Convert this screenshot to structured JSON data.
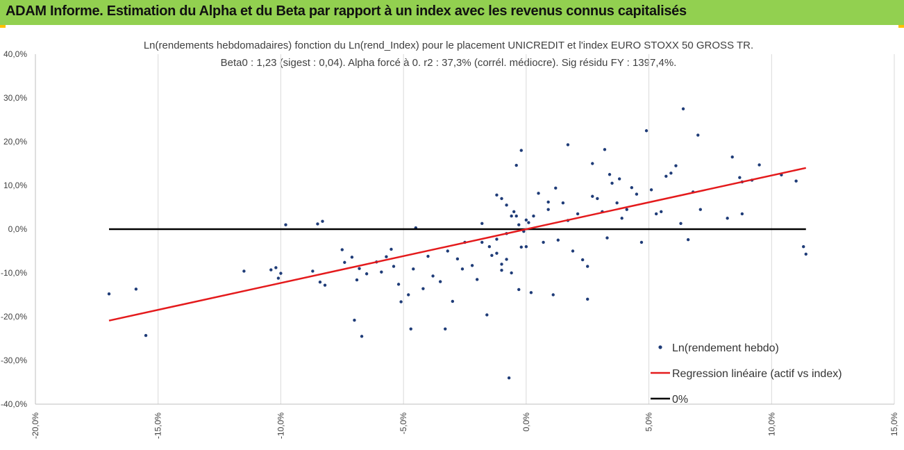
{
  "header": {
    "title": "ADAM Informe. Estimation du Alpha et du Beta par rapport à un index avec les revenus connus capitalisés"
  },
  "colors": {
    "banner": "#92d050",
    "accent": "#ffc000",
    "scatter": "#1f3c78",
    "regression": "#e41a1c",
    "zero_line": "#000000"
  },
  "chart_data": {
    "type": "scatter",
    "title": "Ln(rendements hebdomadaires) fonction du Ln(rend_Index) pour le placement UNICREDIT et l'index EURO STOXX 50 GROSS TR.",
    "subtitle": "Beta0 : 1,23  (sigest : 0,04).  Alpha forcé à 0. r2 : 37,3% (corrél. médiocre). Sig résidu FY : 1397,4%.",
    "xlim": [
      -0.2,
      0.15
    ],
    "ylim": [
      -0.4,
      0.4
    ],
    "x_ticks": [
      -0.2,
      -0.15,
      -0.1,
      -0.05,
      0.0,
      0.05,
      0.1,
      0.15
    ],
    "y_ticks": [
      -0.4,
      -0.3,
      -0.2,
      -0.1,
      0.0,
      0.1,
      0.2,
      0.3,
      0.4
    ],
    "x_tick_labels": [
      "-20,0%",
      "-15,0%",
      "-10,0%",
      "-5,0%",
      "0,0%",
      "5,0%",
      "10,0%",
      "15,0%"
    ],
    "y_tick_labels": [
      "-40,0%",
      "-30,0%",
      "-20,0%",
      "-10,0%",
      "0,0%",
      "10,0%",
      "20,0%",
      "30,0%",
      "40,0%"
    ],
    "grid": "vertical",
    "legend_position": "bottom-right",
    "series": [
      {
        "name": "Ln(rendement hebdo)",
        "type": "scatter",
        "points": [
          [
            -0.17,
            -0.148
          ],
          [
            -0.159,
            -0.137
          ],
          [
            -0.155,
            -0.243
          ],
          [
            -0.115,
            -0.096
          ],
          [
            -0.104,
            -0.093
          ],
          [
            -0.102,
            -0.088
          ],
          [
            -0.101,
            -0.112
          ],
          [
            -0.1,
            -0.101
          ],
          [
            -0.098,
            0.01
          ],
          [
            -0.087,
            -0.096
          ],
          [
            -0.085,
            0.012
          ],
          [
            -0.084,
            -0.121
          ],
          [
            -0.083,
            0.018
          ],
          [
            -0.082,
            -0.128
          ],
          [
            -0.075,
            -0.047
          ],
          [
            -0.074,
            -0.076
          ],
          [
            -0.071,
            -0.064
          ],
          [
            -0.07,
            -0.208
          ],
          [
            -0.069,
            -0.116
          ],
          [
            -0.068,
            -0.09
          ],
          [
            -0.067,
            -0.245
          ],
          [
            -0.065,
            -0.102
          ],
          [
            -0.061,
            -0.075
          ],
          [
            -0.059,
            -0.098
          ],
          [
            -0.057,
            -0.063
          ],
          [
            -0.055,
            -0.046
          ],
          [
            -0.054,
            -0.085
          ],
          [
            -0.052,
            -0.126
          ],
          [
            -0.051,
            -0.166
          ],
          [
            -0.048,
            -0.15
          ],
          [
            -0.047,
            -0.228
          ],
          [
            -0.046,
            -0.091
          ],
          [
            -0.045,
            0.003
          ],
          [
            -0.042,
            -0.136
          ],
          [
            -0.04,
            -0.062
          ],
          [
            -0.038,
            -0.107
          ],
          [
            -0.035,
            -0.12
          ],
          [
            -0.033,
            -0.228
          ],
          [
            -0.032,
            -0.05
          ],
          [
            -0.03,
            -0.165
          ],
          [
            -0.028,
            -0.068
          ],
          [
            -0.026,
            -0.091
          ],
          [
            -0.025,
            -0.03
          ],
          [
            -0.022,
            -0.083
          ],
          [
            -0.02,
            -0.115
          ],
          [
            -0.018,
            0.013
          ],
          [
            -0.016,
            -0.196
          ],
          [
            -0.014,
            -0.06
          ],
          [
            -0.012,
            -0.023
          ],
          [
            -0.01,
            -0.094
          ],
          [
            -0.008,
            -0.069
          ],
          [
            -0.006,
            0.03
          ],
          [
            -0.004,
            0.03
          ],
          [
            -0.002,
            -0.041
          ],
          [
            0.0,
            0.021
          ],
          [
            -0.018,
            -0.03
          ],
          [
            -0.015,
            -0.04
          ],
          [
            -0.012,
            -0.055
          ],
          [
            -0.01,
            -0.08
          ],
          [
            -0.008,
            -0.01
          ],
          [
            -0.006,
            -0.1
          ],
          [
            -0.004,
            0.146
          ],
          [
            -0.002,
            0.18
          ],
          [
            0.0,
            -0.04
          ],
          [
            -0.012,
            0.078
          ],
          [
            -0.01,
            0.07
          ],
          [
            -0.008,
            0.055
          ],
          [
            -0.005,
            0.04
          ],
          [
            -0.003,
            0.01
          ],
          [
            -0.001,
            -0.005
          ],
          [
            0.001,
            0.015
          ],
          [
            0.003,
            0.03
          ],
          [
            0.005,
            0.082
          ],
          [
            0.007,
            -0.03
          ],
          [
            0.009,
            0.045
          ],
          [
            0.011,
            -0.15
          ],
          [
            0.013,
            -0.025
          ],
          [
            0.015,
            0.06
          ],
          [
            0.017,
            0.02
          ],
          [
            0.019,
            -0.05
          ],
          [
            0.021,
            0.035
          ],
          [
            0.023,
            -0.07
          ],
          [
            0.025,
            -0.16
          ],
          [
            0.027,
            0.075
          ],
          [
            0.029,
            0.07
          ],
          [
            0.031,
            0.04
          ],
          [
            0.033,
            -0.02
          ],
          [
            0.035,
            0.105
          ],
          [
            0.037,
            0.06
          ],
          [
            0.039,
            0.025
          ],
          [
            0.041,
            0.045
          ],
          [
            0.043,
            0.095
          ],
          [
            0.045,
            0.08
          ],
          [
            0.047,
            -0.03
          ],
          [
            0.049,
            0.225
          ],
          [
            0.051,
            0.09
          ],
          [
            0.053,
            0.035
          ],
          [
            0.055,
            0.04
          ],
          [
            0.057,
            0.121
          ],
          [
            0.059,
            0.128
          ],
          [
            0.061,
            0.145
          ],
          [
            0.063,
            0.013
          ],
          [
            0.064,
            0.275
          ],
          [
            0.066,
            -0.024
          ],
          [
            0.068,
            0.085
          ],
          [
            0.07,
            0.215
          ],
          [
            0.071,
            0.045
          ],
          [
            0.082,
            0.025
          ],
          [
            0.084,
            0.165
          ],
          [
            0.087,
            0.118
          ],
          [
            0.088,
            0.035
          ],
          [
            0.088,
            0.108
          ],
          [
            0.092,
            0.112
          ],
          [
            0.095,
            0.147
          ],
          [
            0.104,
            0.124
          ],
          [
            0.11,
            0.11
          ],
          [
            0.113,
            -0.04
          ],
          [
            0.114,
            -0.057
          ],
          [
            -0.007,
            -0.34
          ],
          [
            -0.003,
            -0.138
          ],
          [
            0.002,
            -0.145
          ],
          [
            0.025,
            -0.085
          ],
          [
            0.017,
            0.193
          ],
          [
            0.009,
            0.062
          ],
          [
            0.012,
            0.094
          ],
          [
            0.032,
            0.182
          ],
          [
            0.038,
            0.115
          ],
          [
            0.027,
            0.15
          ],
          [
            0.034,
            0.125
          ]
        ]
      },
      {
        "name": "Regression linéaire (actif vs index)",
        "type": "line",
        "points": [
          [
            -0.17,
            -0.209
          ],
          [
            0.114,
            0.14
          ]
        ]
      },
      {
        "name": "0%",
        "type": "line",
        "points": [
          [
            -0.17,
            0.0
          ],
          [
            0.114,
            0.0
          ]
        ]
      }
    ]
  }
}
